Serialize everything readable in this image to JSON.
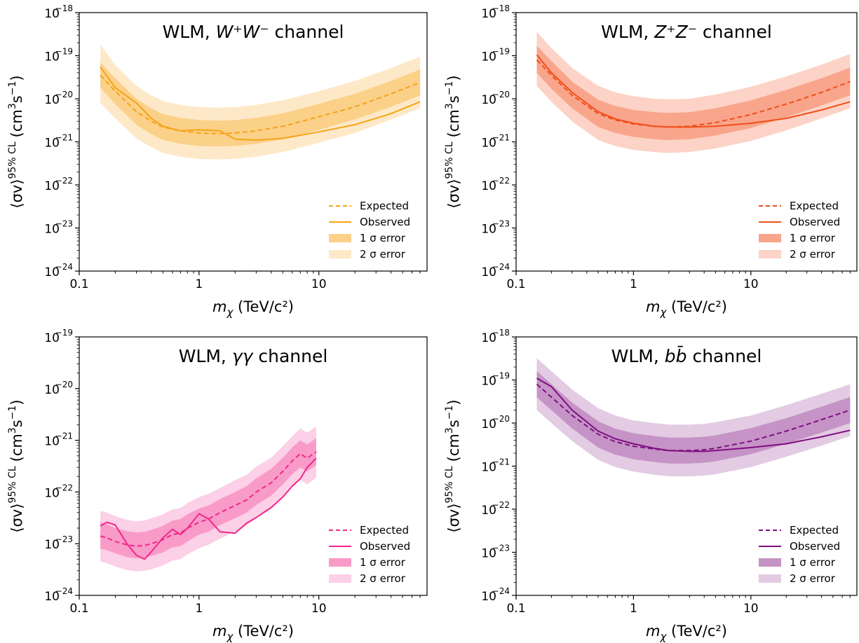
{
  "chart_data": [
    {
      "type": "line",
      "title_prefix": "WLM, ",
      "title_math": "W⁺W⁻",
      "title_suffix": " channel",
      "xlabel_sym": "m",
      "xlabel_sub": "χ",
      "xlabel_unit": " (TeV/c²)",
      "ylabel": "⟨σv⟩ 95% CL (cm³s⁻¹)",
      "ylabel_parts": {
        "main": "⟨σv⟩",
        "sup": "95% CL",
        "unit_a": "(cm",
        "unit_b": "3",
        "unit_c": "s",
        "unit_d": "−1",
        "unit_e": ")"
      },
      "xscale": "log",
      "yscale": "log",
      "xlim": [
        0.1,
        80
      ],
      "ylim": [
        1e-24,
        1e-18
      ],
      "x_ticks": [
        0.1,
        1,
        10
      ],
      "x_tick_labels": [
        "0.1",
        "1",
        "10"
      ],
      "y_tick_exponents": [
        "−24",
        "−23",
        "−22",
        "−21",
        "−20",
        "−19",
        "−18"
      ],
      "color": "#f5a416",
      "band1_color": "#fbd089",
      "band2_color": "#fde9c8",
      "legend": {
        "position": "lower right",
        "labels": [
          "Expected",
          "Observed",
          "1 σ error",
          "2 σ error"
        ]
      },
      "x": [
        0.15,
        0.2,
        0.3,
        0.4,
        0.5,
        0.7,
        1,
        1.5,
        2,
        3,
        5,
        10,
        20,
        40,
        70
      ],
      "expected": [
        3.5e-20,
        1.5e-20,
        5e-21,
        3e-21,
        2.2e-21,
        1.8e-21,
        1.6e-21,
        1.55e-21,
        1.6e-21,
        1.8e-21,
        2.3e-21,
        3.8e-21,
        6.5e-21,
        1.3e-20,
        2.4e-20
      ],
      "observed": [
        5.5e-20,
        1.8e-20,
        8e-21,
        3.5e-21,
        2.3e-21,
        1.8e-21,
        1.9e-21,
        1.8e-21,
        1.15e-21,
        1.1e-21,
        1.2e-21,
        1.7e-21,
        2.5e-21,
        4.5e-21,
        8.5e-21
      ],
      "band1_low": [
        1.8e-20,
        7.5e-21,
        2.5e-21,
        1.5e-21,
        1.1e-21,
        9e-22,
        8e-22,
        7.8e-22,
        8e-22,
        9e-22,
        1.15e-21,
        1.9e-21,
        3.3e-21,
        6.5e-21,
        1.2e-20
      ],
      "band1_high": [
        7e-20,
        3e-20,
        1e-20,
        6e-21,
        4.4e-21,
        3.6e-21,
        3.2e-21,
        3.1e-21,
        3.2e-21,
        3.6e-21,
        4.6e-21,
        7.6e-21,
        1.3e-20,
        2.6e-20,
        4.8e-20
      ],
      "band2_low": [
        8e-21,
        3.5e-21,
        1.2e-21,
        7.5e-22,
        5.5e-22,
        4.5e-22,
        4e-22,
        3.9e-22,
        4e-22,
        4.5e-22,
        5.8e-22,
        9.5e-22,
        1.6e-21,
        3.3e-21,
        6e-21
      ],
      "band2_high": [
        1.8e-19,
        6e-20,
        2e-20,
        1.2e-20,
        8.8e-21,
        7.2e-21,
        6.4e-21,
        6.2e-21,
        6.4e-21,
        7.2e-21,
        9.2e-21,
        1.5e-20,
        2.6e-20,
        5.2e-20,
        9.5e-20
      ]
    },
    {
      "type": "line",
      "title_prefix": "WLM, ",
      "title_math": "Z⁺Z⁻",
      "title_suffix": " channel",
      "xlabel_sym": "m",
      "xlabel_sub": "χ",
      "xlabel_unit": " (TeV/c²)",
      "ylabel": "⟨σv⟩ 95% CL (cm³s⁻¹)",
      "ylabel_parts": {
        "main": "⟨σv⟩",
        "sup": "95% CL",
        "unit_a": "(cm",
        "unit_b": "3",
        "unit_c": "s",
        "unit_d": "−1",
        "unit_e": ")"
      },
      "xscale": "log",
      "yscale": "log",
      "xlim": [
        0.1,
        80
      ],
      "ylim": [
        1e-24,
        1e-18
      ],
      "x_ticks": [
        0.1,
        1,
        10
      ],
      "x_tick_labels": [
        "0.1",
        "1",
        "10"
      ],
      "y_tick_exponents": [
        "−24",
        "−23",
        "−22",
        "−21",
        "−20",
        "−19",
        "−18"
      ],
      "color": "#f04e1a",
      "band1_color": "#f9a58c",
      "band2_color": "#fcd3c6",
      "legend": {
        "position": "lower right",
        "labels": [
          "Expected",
          "Observed",
          "1 σ error",
          "2 σ error"
        ]
      },
      "x": [
        0.15,
        0.2,
        0.3,
        0.5,
        0.7,
        1,
        1.5,
        2,
        3,
        5,
        10,
        20,
        40,
        70
      ],
      "expected": [
        8e-20,
        3.5e-20,
        1.2e-20,
        4.5e-21,
        3.2e-21,
        2.6e-21,
        2.3e-21,
        2.2e-21,
        2.3e-21,
        2.8e-21,
        4.3e-21,
        7.5e-21,
        1.4e-20,
        2.5e-20
      ],
      "observed": [
        1.05e-19,
        4e-20,
        1.4e-20,
        5e-21,
        3.4e-21,
        2.7e-21,
        2.3e-21,
        2.2e-21,
        2.2e-21,
        2.3e-21,
        2.7e-21,
        3.5e-21,
        5.5e-21,
        8.5e-21
      ],
      "band1_low": [
        4e-20,
        1.7e-20,
        6e-21,
        2.2e-21,
        1.6e-21,
        1.3e-21,
        1.15e-21,
        1.1e-21,
        1.15e-21,
        1.4e-21,
        2.1e-21,
        3.7e-21,
        7e-21,
        1.2e-20
      ],
      "band1_high": [
        1.7e-19,
        7.5e-20,
        2.5e-20,
        9.5e-21,
        6.8e-21,
        5.5e-21,
        4.9e-21,
        4.7e-21,
        4.9e-21,
        6e-21,
        9.2e-21,
        1.6e-20,
        3e-20,
        5.3e-20
      ],
      "band2_low": [
        2e-20,
        8.5e-21,
        3e-21,
        1.1e-21,
        8e-22,
        6.5e-22,
        5.8e-22,
        5.5e-22,
        5.8e-22,
        7e-22,
        1.05e-21,
        1.85e-21,
        3.5e-21,
        6e-21
      ],
      "band2_high": [
        3.6e-19,
        1.5e-19,
        5.2e-20,
        2e-20,
        1.4e-20,
        1.15e-20,
        1e-20,
        9.7e-21,
        1e-20,
        1.25e-20,
        1.9e-20,
        3.3e-20,
        6.2e-20,
        1.1e-19
      ]
    },
    {
      "type": "line",
      "title_prefix": "WLM, ",
      "title_math": "γγ",
      "title_suffix": " channel",
      "xlabel_sym": "m",
      "xlabel_sub": "χ",
      "xlabel_unit": " (TeV/c²)",
      "ylabel": "⟨σv⟩ 95% CL (cm³s⁻¹)",
      "ylabel_parts": {
        "main": "⟨σv⟩",
        "sup": "95% CL",
        "unit_a": "(cm",
        "unit_b": "3",
        "unit_c": "s",
        "unit_d": "−1",
        "unit_e": ")"
      },
      "xscale": "log",
      "yscale": "log",
      "xlim": [
        0.1,
        80
      ],
      "ylim": [
        1e-24,
        1e-19
      ],
      "x_ticks": [
        0.1,
        1,
        10
      ],
      "x_tick_labels": [
        "0.1",
        "1",
        "10"
      ],
      "y_tick_exponents": [
        "−24",
        "−23",
        "−22",
        "−21",
        "−20",
        "−19"
      ],
      "color": "#f0288c",
      "band1_color": "#f99bc8",
      "band2_color": "#fcd0e6",
      "legend": {
        "position": "lower right",
        "labels": [
          "Expected",
          "Observed",
          "1 σ error",
          "2 σ error"
        ]
      },
      "x": [
        0.15,
        0.17,
        0.2,
        0.25,
        0.3,
        0.35,
        0.4,
        0.5,
        0.6,
        0.7,
        0.8,
        1,
        1.2,
        1.5,
        2,
        2.5,
        3,
        4,
        5,
        6,
        7,
        8,
        9.5
      ],
      "expected": [
        1.4e-23,
        1.3e-23,
        1.1e-23,
        9.5e-24,
        9e-24,
        9.2e-24,
        1e-23,
        1.2e-23,
        1.5e-23,
        1.6e-23,
        2e-23,
        2.6e-23,
        3e-23,
        4e-23,
        5.5e-23,
        7e-23,
        1e-22,
        1.5e-22,
        2.5e-22,
        4e-22,
        5.5e-22,
        4.5e-22,
        6e-22
      ],
      "observed": [
        2.2e-23,
        2.6e-23,
        2.3e-23,
        1e-23,
        6e-24,
        5e-24,
        7e-24,
        1.3e-23,
        1.9e-23,
        1.5e-23,
        2e-23,
        3.8e-23,
        3e-23,
        1.7e-23,
        1.6e-23,
        2.5e-23,
        3.2e-23,
        5e-23,
        8e-23,
        1.3e-22,
        1.8e-22,
        3e-22,
        4.5e-22
      ],
      "band1_low": [
        8e-24,
        7.5e-24,
        6.5e-24,
        5.5e-24,
        5.2e-24,
        5.3e-24,
        5.8e-24,
        6.8e-24,
        8.5e-24,
        9e-24,
        1.1e-23,
        1.5e-23,
        1.7e-23,
        2.3e-23,
        3.1e-23,
        4e-23,
        5.6e-23,
        8.5e-23,
        1.4e-22,
        2.2e-22,
        3e-22,
        2.5e-22,
        3.3e-22
      ],
      "band1_high": [
        2.6e-23,
        2.4e-23,
        2e-23,
        1.75e-23,
        1.65e-23,
        1.7e-23,
        1.85e-23,
        2.2e-23,
        2.8e-23,
        3e-23,
        3.7e-23,
        4.8e-23,
        5.5e-23,
        7.3e-23,
        1e-22,
        1.3e-22,
        1.85e-22,
        2.8e-22,
        4.6e-22,
        7.3e-22,
        1e-21,
        8.3e-22,
        1.1e-21
      ],
      "band2_low": [
        4.5e-24,
        4.2e-24,
        3.6e-24,
        3.1e-24,
        2.9e-24,
        3e-24,
        3.2e-24,
        3.8e-24,
        4.7e-24,
        5e-24,
        6.2e-24,
        8.2e-24,
        9.5e-24,
        1.25e-23,
        1.7e-23,
        2.2e-23,
        3.1e-23,
        4.7e-23,
        7.8e-23,
        1.25e-22,
        1.7e-22,
        1.4e-22,
        1.9e-22
      ],
      "band2_high": [
        4.3e-23,
        4e-23,
        3.4e-23,
        2.9e-23,
        2.7e-23,
        2.8e-23,
        3.1e-23,
        3.7e-23,
        4.6e-23,
        4.9e-23,
        6.1e-23,
        8e-23,
        9.2e-23,
        1.2e-22,
        1.7e-22,
        2.15e-22,
        3.1e-22,
        4.6e-22,
        7.7e-22,
        1.2e-21,
        1.7e-21,
        1.4e-21,
        1.85e-21
      ]
    },
    {
      "type": "line",
      "title_prefix": "WLM, ",
      "title_math": "bb̄",
      "title_suffix": " channel",
      "xlabel_sym": "m",
      "xlabel_sub": "χ",
      "xlabel_unit": " (TeV/c²)",
      "ylabel": "⟨σv⟩ 95% CL (cm³s⁻¹)",
      "ylabel_parts": {
        "main": "⟨σv⟩",
        "sup": "95% CL",
        "unit_a": "(cm",
        "unit_b": "3",
        "unit_c": "s",
        "unit_d": "−1",
        "unit_e": ")"
      },
      "xscale": "log",
      "yscale": "log",
      "xlim": [
        0.1,
        80
      ],
      "ylim": [
        1e-24,
        1e-18
      ],
      "x_ticks": [
        0.1,
        1,
        10
      ],
      "x_tick_labels": [
        "0.1",
        "1",
        "10"
      ],
      "y_tick_exponents": [
        "−24",
        "−23",
        "−22",
        "−21",
        "−20",
        "−19",
        "−18"
      ],
      "color": "#7f0f80",
      "band1_color": "#c593c6",
      "band2_color": "#e2cbe3",
      "legend": {
        "position": "lower right",
        "labels": [
          "Expected",
          "Observed",
          "1 σ error",
          "2 σ error"
        ]
      },
      "x": [
        0.15,
        0.2,
        0.3,
        0.5,
        0.7,
        1,
        1.5,
        2,
        3,
        4,
        5,
        10,
        20,
        40,
        70
      ],
      "expected": [
        8e-20,
        4e-20,
        1.5e-20,
        5.5e-21,
        3.7e-21,
        2.9e-21,
        2.5e-21,
        2.3e-21,
        2.3e-21,
        2.4e-21,
        2.6e-21,
        3.8e-21,
        6.5e-21,
        1.2e-20,
        2e-20
      ],
      "observed": [
        1.1e-19,
        7e-20,
        2e-20,
        6.5e-21,
        4.3e-21,
        3.3e-21,
        2.6e-21,
        2.3e-21,
        2.2e-21,
        2.2e-21,
        2.3e-21,
        2.7e-21,
        3.3e-21,
        4.8e-21,
        6.8e-21
      ],
      "band1_low": [
        4e-20,
        2e-20,
        7.5e-21,
        2.7e-21,
        1.85e-21,
        1.45e-21,
        1.25e-21,
        1.15e-21,
        1.15e-21,
        1.2e-21,
        1.3e-21,
        1.9e-21,
        3.3e-21,
        6e-21,
        1e-20
      ],
      "band1_high": [
        1.6e-19,
        8e-20,
        3e-20,
        1.1e-20,
        7.4e-21,
        5.8e-21,
        5e-21,
        4.6e-21,
        4.6e-21,
        4.8e-21,
        5.2e-21,
        7.6e-21,
        1.3e-20,
        2.4e-20,
        4e-20
      ],
      "band2_low": [
        2e-20,
        1e-20,
        3.8e-21,
        1.4e-21,
        9.5e-22,
        7.5e-22,
        6.3e-22,
        5.8e-22,
        5.8e-22,
        6e-22,
        6.5e-22,
        9.5e-22,
        1.65e-21,
        3e-21,
        5e-21
      ],
      "band2_high": [
        3.2e-19,
        1.6e-19,
        6e-20,
        2.2e-20,
        1.5e-20,
        1.15e-20,
        1e-20,
        9.2e-21,
        9.2e-21,
        9.6e-21,
        1.05e-20,
        1.5e-20,
        2.6e-20,
        4.8e-20,
        8e-20
      ]
    }
  ]
}
